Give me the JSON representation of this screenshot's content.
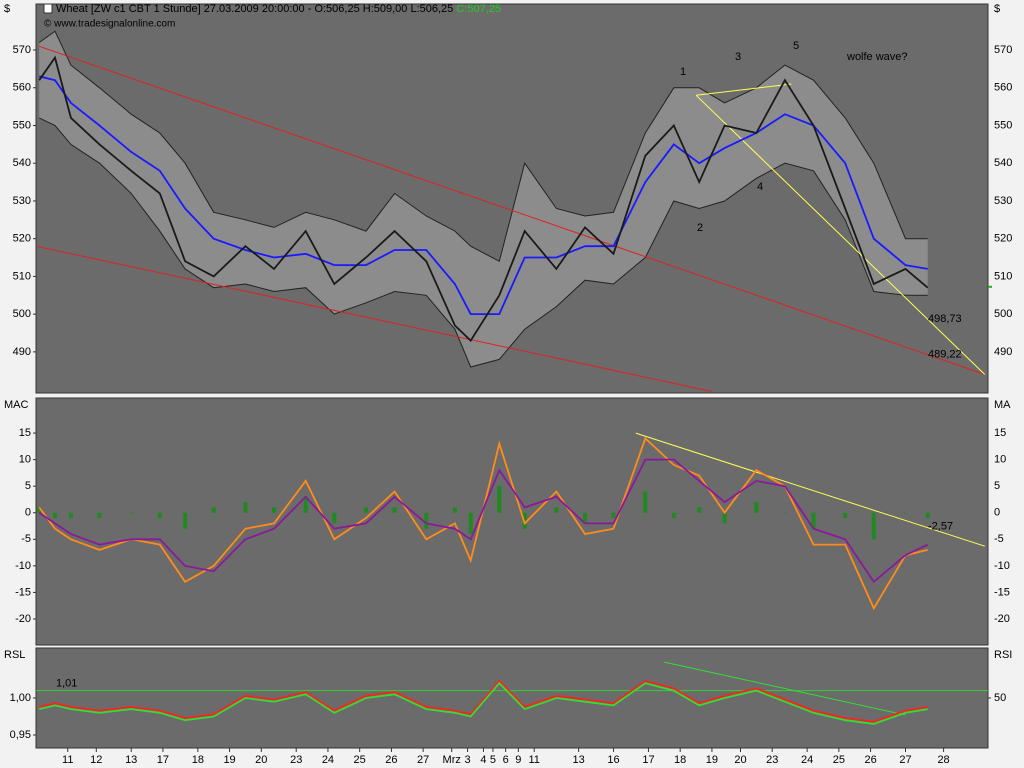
{
  "chart_data": [
    {
      "type": "line",
      "title": "Wheat [ZW c1 CBT  1 Stunde] 27.03.2009 20:00:00 - O:506,25 H:509,00 L:506,25",
      "last_close": {
        "value": 507.25,
        "label": "C:507,25"
      },
      "subtitle": "© www.tradesignalonline.com",
      "unit": "$",
      "xlim": [
        0,
        300
      ],
      "ylim": [
        479.1,
        582.2
      ],
      "yticks": [
        490,
        500,
        510,
        520,
        530,
        540,
        550,
        560,
        570
      ],
      "grid": false,
      "x": [
        1,
        6,
        11,
        20,
        30,
        39,
        47,
        56,
        66,
        75,
        85,
        94,
        104,
        113,
        123,
        132,
        137,
        146,
        154,
        164,
        173,
        182,
        192,
        201,
        209,
        217,
        227,
        236,
        245,
        255,
        264,
        274,
        281
      ],
      "band": {
        "color": "#8c8c8c",
        "upper": [
          572,
          575,
          566,
          560,
          553,
          548,
          540,
          527,
          525,
          523,
          527,
          525,
          522,
          532,
          526,
          522,
          518,
          514,
          540,
          528,
          526,
          527,
          548,
          560,
          560,
          556,
          560,
          566,
          562,
          552,
          540,
          520,
          520
        ],
        "lower": [
          552,
          550,
          545,
          540,
          532,
          522,
          512,
          507,
          508,
          506,
          507,
          500,
          503,
          506,
          505,
          496,
          486,
          488,
          496,
          502,
          509,
          508,
          515,
          530,
          528,
          530,
          536,
          540,
          538,
          525,
          506,
          505,
          505
        ]
      },
      "series": [
        {
          "color": "#1a1aff",
          "values": [
            563,
            562,
            556,
            550,
            543,
            538,
            528,
            520,
            517,
            515,
            516,
            513,
            513,
            517,
            517,
            508,
            500,
            500,
            515,
            515,
            518,
            518,
            535,
            545,
            540,
            544,
            548,
            553,
            550,
            540,
            520,
            513,
            512
          ]
        },
        {
          "color": "#1a1a1a",
          "values": [
            562,
            568,
            552,
            545,
            538,
            532,
            514,
            510,
            518,
            512,
            522,
            508,
            515,
            522,
            514,
            497,
            493,
            505,
            522,
            512,
            523,
            516,
            542,
            550,
            535,
            550,
            548,
            562,
            550,
            528,
            508,
            512,
            507
          ]
        }
      ],
      "trendlines": [
        {
          "color": "#dd2222",
          "x": [
            1,
            299
          ],
          "y": [
            571,
            484
          ]
        },
        {
          "color": "#dd2222",
          "x": [
            0,
            213
          ],
          "y": [
            518,
            479.5
          ]
        },
        {
          "color": "#ffff55",
          "x": [
            208,
            299
          ],
          "y": [
            558,
            484
          ]
        },
        {
          "color": "#ffff55",
          "x": [
            208,
            238
          ],
          "y": [
            558,
            561
          ]
        }
      ],
      "annotations": [
        "1",
        "2",
        "3",
        "4",
        "5",
        "wolfe wave?"
      ],
      "levels": [
        {
          "value": 498.73,
          "label": "498,73",
          "color": "#ffff55"
        },
        {
          "value": 489.22,
          "label": "489,22",
          "color": "#ff3333"
        }
      ]
    },
    {
      "type": "line",
      "left_label": "MAC",
      "right_label": "MA",
      "xlim": [
        0,
        300
      ],
      "ylim": [
        -24.9,
        21.6
      ],
      "yticks": [
        -20,
        -15,
        -10,
        -5,
        0,
        5,
        10,
        15
      ],
      "grid": false,
      "x": [
        1,
        6,
        11,
        20,
        30,
        39,
        47,
        56,
        66,
        75,
        85,
        94,
        104,
        113,
        123,
        132,
        137,
        146,
        154,
        164,
        173,
        182,
        192,
        201,
        209,
        217,
        227,
        236,
        245,
        255,
        264,
        274,
        281
      ],
      "histogram": {
        "color": "#1f8a1f",
        "values": [
          1,
          -1,
          -1,
          -1,
          0,
          -1,
          -3,
          1,
          2,
          1,
          3,
          -2,
          1,
          1,
          -3,
          1,
          -4,
          5,
          -3,
          1,
          -2,
          -1,
          4,
          -1,
          1,
          -2,
          2,
          0,
          -3,
          -1,
          -5,
          0,
          -1
        ]
      },
      "series": [
        {
          "color": "#ff8c1a",
          "values": [
            1,
            -3,
            -5,
            -7,
            -5,
            -6,
            -13,
            -10,
            -3,
            -2,
            6,
            -5,
            -1,
            4,
            -5,
            -2,
            -9,
            13,
            -2,
            4,
            -4,
            -3,
            14,
            9,
            7,
            0,
            8,
            5,
            -6,
            -6,
            -18,
            -8,
            -7
          ]
        },
        {
          "color": "#8b1a9a",
          "values": [
            0,
            -2,
            -4,
            -6,
            -5,
            -5,
            -10,
            -11,
            -5,
            -3,
            3,
            -3,
            -2,
            3,
            -2,
            -3,
            -5,
            8,
            1,
            3,
            -2,
            -2,
            10,
            10,
            6,
            2,
            6,
            5,
            -3,
            -5,
            -13,
            -8,
            -6
          ]
        }
      ],
      "trendlines": [
        {
          "color": "#ffff55",
          "x": [
            189,
            299
          ],
          "y": [
            15,
            -6.3
          ]
        }
      ],
      "levels": [
        {
          "value": -2.57,
          "label": "-2,57",
          "color": "#ffff55"
        }
      ]
    },
    {
      "type": "line",
      "left_label": "RSL",
      "right_label": "RSI",
      "xlim": [
        0,
        300
      ],
      "ylim": [
        0.9324,
        1.0676
      ],
      "yticks": [
        {
          "value": 0.95,
          "label": "0,95"
        },
        {
          "value": 1.0,
          "label": "1,00"
        }
      ],
      "y2lim": [
        25,
        75
      ],
      "y2ticks": [
        50
      ],
      "grid": false,
      "x": [
        1,
        6,
        11,
        20,
        30,
        39,
        47,
        56,
        66,
        75,
        85,
        94,
        104,
        113,
        123,
        132,
        137,
        146,
        154,
        164,
        173,
        182,
        192,
        201,
        209,
        217,
        227,
        236,
        245,
        255,
        264,
        274,
        281
      ],
      "xticks": [
        {
          "value": 10,
          "label": "11"
        },
        {
          "value": 19,
          "label": "12"
        },
        {
          "value": 30,
          "label": "13"
        },
        {
          "value": 40,
          "label": "17"
        },
        {
          "value": 51,
          "label": "18"
        },
        {
          "value": 61,
          "label": "19"
        },
        {
          "value": 71,
          "label": "20"
        },
        {
          "value": 82,
          "label": "23"
        },
        {
          "value": 92,
          "label": "24"
        },
        {
          "value": 102,
          "label": "25"
        },
        {
          "value": 112,
          "label": "26"
        },
        {
          "value": 122,
          "label": "27"
        },
        {
          "value": 131,
          "label": "Mrz"
        },
        {
          "value": 136,
          "label": "3"
        },
        {
          "value": 141,
          "label": "4"
        },
        {
          "value": 144,
          "label": "5"
        },
        {
          "value": 148,
          "label": "6"
        },
        {
          "value": 152,
          "label": "9"
        },
        {
          "value": 157,
          "label": "11"
        },
        {
          "value": 171,
          "label": "13"
        },
        {
          "value": 182,
          "label": "16"
        },
        {
          "value": 193,
          "label": "17"
        },
        {
          "value": 203,
          "label": "18"
        },
        {
          "value": 213,
          "label": "19"
        },
        {
          "value": 222,
          "label": "20"
        },
        {
          "value": 232,
          "label": "23"
        },
        {
          "value": 243,
          "label": "24"
        },
        {
          "value": 253,
          "label": "25"
        },
        {
          "value": 263,
          "label": "26"
        },
        {
          "value": 274,
          "label": "27"
        },
        {
          "value": 286,
          "label": "28"
        }
      ],
      "series": [
        {
          "color": "#ff2020",
          "values": [
            0.988,
            0.993,
            0.988,
            0.983,
            0.988,
            0.983,
            0.973,
            0.978,
            1.003,
            0.998,
            1.008,
            0.983,
            1.003,
            1.008,
            0.988,
            0.983,
            0.978,
            1.023,
            0.988,
            1.003,
            0.998,
            0.993,
            1.023,
            1.013,
            0.993,
            1.003,
            1.013,
            0.998,
            0.983,
            0.973,
            0.968,
            0.983,
            0.988
          ]
        },
        {
          "color": "#33dd33",
          "values": [
            0.985,
            0.99,
            0.985,
            0.98,
            0.985,
            0.98,
            0.97,
            0.975,
            1.0,
            0.995,
            1.005,
            0.98,
            1.0,
            1.005,
            0.985,
            0.98,
            0.975,
            1.02,
            0.985,
            1.0,
            0.995,
            0.99,
            1.02,
            1.01,
            0.99,
            1.0,
            1.01,
            0.995,
            0.98,
            0.97,
            0.965,
            0.98,
            0.985
          ]
        }
      ],
      "trendlines": [
        {
          "color": "#33dd33",
          "x": [
            198,
            274
          ],
          "y": [
            1.0486,
            0.977
          ]
        }
      ],
      "reference": {
        "value": 1.01,
        "label": "1,01",
        "color": "#33cc33"
      }
    }
  ]
}
